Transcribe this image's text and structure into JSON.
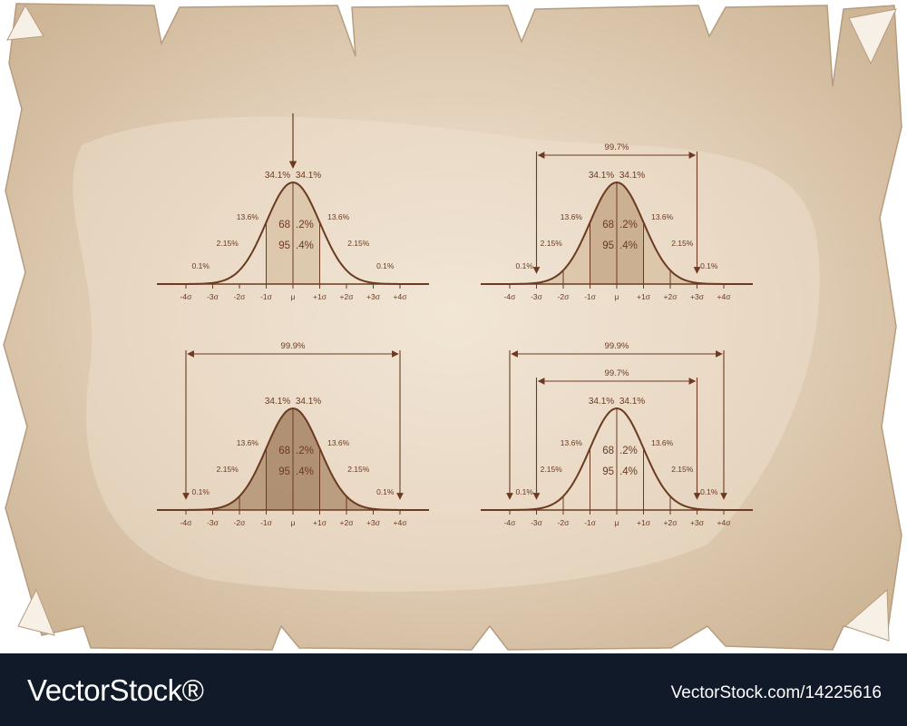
{
  "colors": {
    "ink": "#6b3a21",
    "paper": "#d9c4ab",
    "paper_center": "#efe2cf",
    "shade_light": "#d9c3a6",
    "shade_mid": "#c5a787",
    "shade_dark": "#a58365",
    "footer_bg": "#101a29"
  },
  "sigma_labels": [
    "-4σ",
    "-3σ",
    "-2σ",
    "-1σ",
    "μ",
    "+1σ",
    "+2σ",
    "+3σ",
    "+4σ"
  ],
  "percent_labels": {
    "p341": "34.1%",
    "p136": "13.6%",
    "p215": "2.15%",
    "p01": "0.1%",
    "p68_a": "68",
    "p68_b": ".2%",
    "p95_a": "95",
    "p95_b": ".4%",
    "span_997": "99.7%",
    "span_999": "99.9%"
  },
  "diagrams": [
    {
      "name": "distribution-center-arrow",
      "shade": "1sigma",
      "pointer": true,
      "spans": []
    },
    {
      "name": "distribution-99-7",
      "shade": "3sigma",
      "pointer": false,
      "spans": [
        "99.7%"
      ]
    },
    {
      "name": "distribution-99-9",
      "shade": "4sigma",
      "pointer": false,
      "spans": [
        "99.9%"
      ]
    },
    {
      "name": "distribution-99-9-99-7",
      "shade": "none",
      "pointer": false,
      "spans": [
        "99.9%",
        "99.7%"
      ]
    }
  ],
  "footer": {
    "brand": "VectorStock®",
    "url": "VectorStock.com/14225616"
  }
}
